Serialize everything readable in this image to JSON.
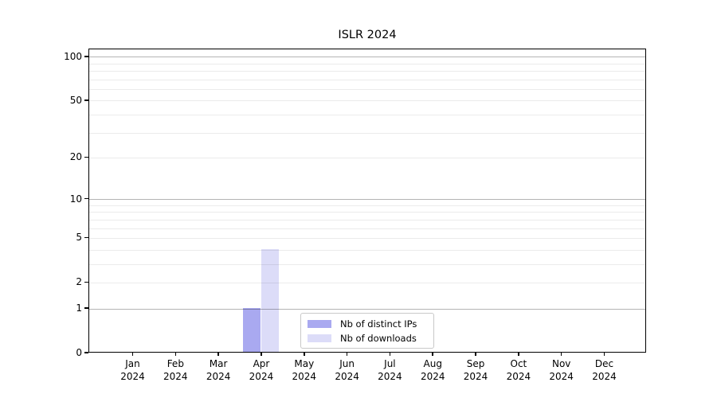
{
  "title": "ISLR 2024",
  "chart_data": {
    "type": "bar",
    "title": "ISLR 2024",
    "categories": [
      "Jan 2024",
      "Feb 2024",
      "Mar 2024",
      "Apr 2024",
      "May 2024",
      "Jun 2024",
      "Jul 2024",
      "Aug 2024",
      "Sep 2024",
      "Oct 2024",
      "Nov 2024",
      "Dec 2024"
    ],
    "x_tick_months": [
      "Jan",
      "Feb",
      "Mar",
      "Apr",
      "May",
      "Jun",
      "Jul",
      "Aug",
      "Sep",
      "Oct",
      "Nov",
      "Dec"
    ],
    "x_tick_year": "2024",
    "series": [
      {
        "name": "Nb of distinct IPs",
        "color": "#a9a9f0",
        "values": [
          0,
          0,
          0,
          1,
          0,
          0,
          0,
          0,
          0,
          0,
          0,
          0
        ]
      },
      {
        "name": "Nb of downloads",
        "color": "#dcdcf8",
        "values": [
          0,
          0,
          0,
          4,
          0,
          0,
          0,
          0,
          0,
          0,
          0,
          0
        ]
      }
    ],
    "xlabel": "",
    "ylabel": "",
    "yticks": [
      0,
      1,
      2,
      5,
      10,
      20,
      50,
      100
    ],
    "ylim": [
      0,
      113
    ],
    "yscale": "log1p",
    "grid": "both",
    "grid_major_at": [
      1,
      10,
      100
    ],
    "legend_position": "lower center"
  },
  "legend": {
    "items": [
      {
        "label": "Nb of distinct IPs",
        "color": "#a9a9f0"
      },
      {
        "label": "Nb of downloads",
        "color": "#dcdcf8"
      }
    ]
  }
}
